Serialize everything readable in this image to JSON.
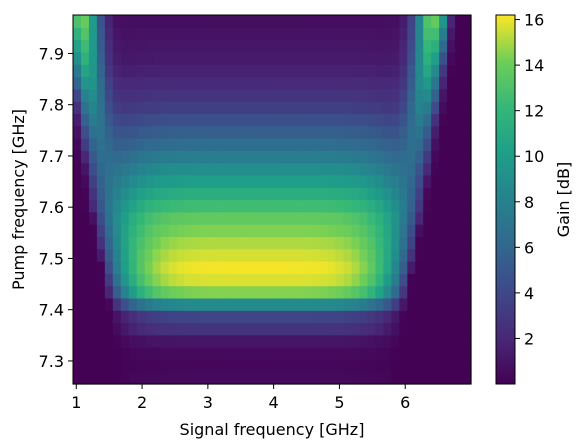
{
  "chart_data": {
    "type": "heatmap",
    "xlabel": "Signal frequency [GHz]",
    "ylabel": "Pump frequency [GHz]",
    "colorbar_label": "Gain [dB]",
    "colormap": "viridis",
    "xlim": [
      0.95,
      7.0
    ],
    "ylim": [
      7.255,
      7.975
    ],
    "x_ticks": [
      1,
      2,
      3,
      4,
      5,
      6
    ],
    "y_ticks": [
      7.3,
      7.4,
      7.5,
      7.6,
      7.7,
      7.8,
      7.9
    ],
    "colorbar_range": [
      0.0,
      16.2
    ],
    "colorbar_ticks": [
      2,
      4,
      6,
      8,
      10,
      12,
      14,
      16
    ],
    "x_bins": 50,
    "y_bins": 30,
    "model": {
      "description_of_structure": "U-shaped gain region centered at 3.75 GHz",
      "center_signal_ghz": 3.75,
      "peak_pump_ghz": 7.47,
      "peak_gain_db": 16.1,
      "bandwidth_edges_ghz": {
        "pump": [
          7.27,
          7.4,
          7.5,
          7.6,
          7.7,
          7.8,
          7.9,
          7.975
        ],
        "halfwidth": [
          2.05,
          2.25,
          2.4,
          2.55,
          2.65,
          2.75,
          2.85,
          2.9
        ]
      },
      "gain_along_center": {
        "pump": [
          7.255,
          7.3,
          7.35,
          7.38,
          7.42,
          7.47,
          7.52,
          7.58,
          7.65,
          7.72,
          7.8,
          7.88,
          7.975
        ],
        "gain": [
          0.3,
          0.4,
          1.0,
          6.0,
          13.5,
          16.1,
          15.2,
          13.5,
          10.0,
          6.5,
          3.0,
          1.2,
          0.4
        ]
      }
    }
  }
}
